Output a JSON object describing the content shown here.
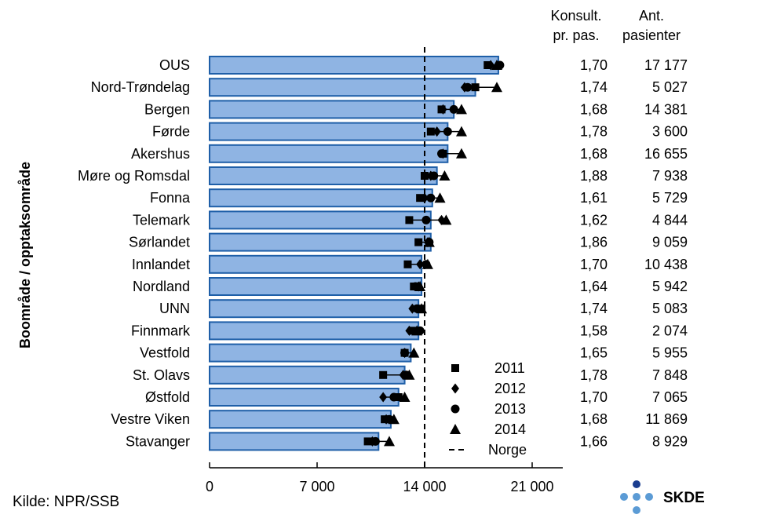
{
  "colors": {
    "bar_fill": "#8fb4e3",
    "bar_stroke": "#1f5fa8",
    "marker": "#000000",
    "skde_dark": "#1a3d8f",
    "skde_light": "#5b9bd5"
  },
  "headers": {
    "consult_line1": "Konsult.",
    "consult_line2": "pr. pas.",
    "patients_line1": "Ant.",
    "patients_line2": "pasienter"
  },
  "source": "Kilde: NPR/SSB",
  "logo_text": "SKDE",
  "chart_data": {
    "type": "bar",
    "orientation": "horizontal",
    "ylabel": "Boområde / opptaksområde",
    "xlabel": "",
    "xlim": [
      0,
      28000
    ],
    "xticks": [
      0,
      7000,
      14000,
      21000
    ],
    "xtick_labels": [
      "0",
      "7 000",
      "14 000",
      "21 000"
    ],
    "categories": [
      "OUS",
      "Nord-Trøndelag",
      "Bergen",
      "Førde",
      "Akershus",
      "Møre og Romsdal",
      "Fonna",
      "Telemark",
      "Sørlandet",
      "Innlandet",
      "Nordland",
      "UNN",
      "Finnmark",
      "Vestfold",
      "St. Olavs",
      "Østfold",
      "Vestre Viken",
      "Stavanger"
    ],
    "values": [
      18800,
      17300,
      15900,
      15500,
      15500,
      14800,
      14500,
      14400,
      14400,
      13800,
      13800,
      13600,
      13600,
      13100,
      12700,
      12300,
      11800,
      11000
    ],
    "series": [
      {
        "name": "2011",
        "marker": "square",
        "values": [
          18100,
          17300,
          15100,
          14400,
          15200,
          14000,
          13700,
          13000,
          13600,
          12900,
          13300,
          13800,
          13300,
          12700,
          11300,
          12300,
          11400,
          10300
        ]
      },
      {
        "name": "2012",
        "marker": "diamond",
        "values": [
          18300,
          16600,
          15200,
          14800,
          15200,
          14400,
          14000,
          15100,
          14200,
          13700,
          13600,
          13200,
          13000,
          12700,
          12600,
          11300,
          11500,
          10600
        ]
      },
      {
        "name": "2013",
        "marker": "circle",
        "values": [
          18900,
          16800,
          15900,
          15500,
          15100,
          14600,
          14400,
          14100,
          14300,
          14100,
          13400,
          13500,
          13700,
          12700,
          12800,
          12000,
          11700,
          10800
        ]
      },
      {
        "name": "2014",
        "marker": "triangle",
        "values": [
          18700,
          18700,
          16400,
          16400,
          16400,
          15300,
          15000,
          15400,
          14300,
          14200,
          13700,
          13800,
          13500,
          13300,
          13000,
          12700,
          12000,
          11700
        ]
      }
    ],
    "reference": {
      "name": "Norge",
      "value": 14000,
      "style": "dashed"
    },
    "legend": {
      "position": "bottom-right-inside",
      "entries": [
        "2011",
        "2012",
        "2013",
        "2014",
        "Norge"
      ]
    },
    "consult_per_patient": [
      "1,70",
      "1,74",
      "1,68",
      "1,78",
      "1,68",
      "1,88",
      "1,61",
      "1,62",
      "1,86",
      "1,70",
      "1,64",
      "1,74",
      "1,58",
      "1,65",
      "1,78",
      "1,70",
      "1,68",
      "1,66"
    ],
    "patients": [
      "17 177",
      "5 027",
      "14 381",
      "3 600",
      "16 655",
      "7 938",
      "5 729",
      "4 844",
      "9 059",
      "10 438",
      "5 942",
      "5 083",
      "2 074",
      "5 955",
      "7 848",
      "7 065",
      "11 869",
      "8 929"
    ],
    "grid": false
  }
}
